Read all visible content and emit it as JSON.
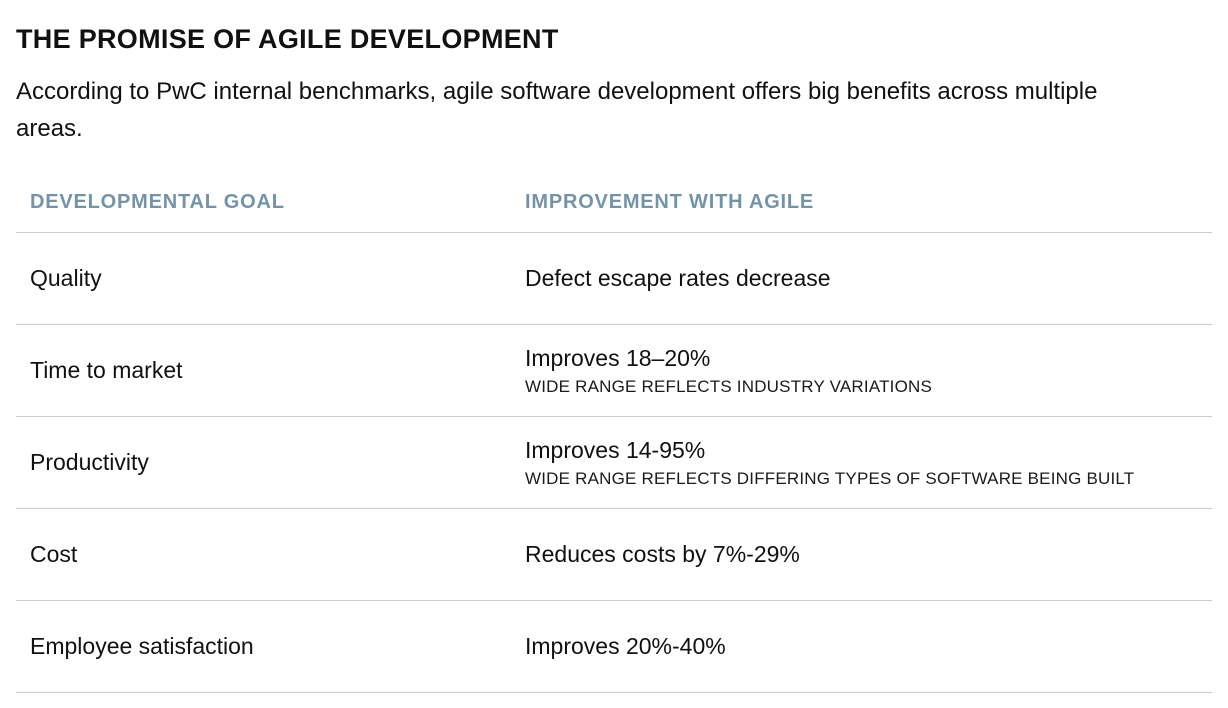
{
  "page": {
    "title": "THE PROMISE OF AGILE DEVELOPMENT",
    "subtitle": "According to PwC internal benchmarks, agile software development offers big benefits across multiple areas."
  },
  "table": {
    "headers": {
      "goal": "DEVELOPMENTAL GOAL",
      "improvement": "IMPROVEMENT WITH AGILE"
    },
    "rows": [
      {
        "goal": "Quality",
        "improvement": "Defect escape rates decrease",
        "note": ""
      },
      {
        "goal": "Time to market",
        "improvement": "Improves 18–20%",
        "note": "WIDE RANGE REFLECTS INDUSTRY VARIATIONS"
      },
      {
        "goal": "Productivity",
        "improvement": "Improves 14-95%",
        "note": "WIDE RANGE REFLECTS DIFFERING TYPES OF SOFTWARE BEING BUILT"
      },
      {
        "goal": "Cost",
        "improvement": "Reduces costs by 7%-29%",
        "note": ""
      },
      {
        "goal": "Employee satisfaction",
        "improvement": "Improves 20%-40%",
        "note": ""
      }
    ]
  },
  "colors": {
    "header_blue": "#7394a8",
    "divider": "#cccccc",
    "text": "#111111"
  }
}
